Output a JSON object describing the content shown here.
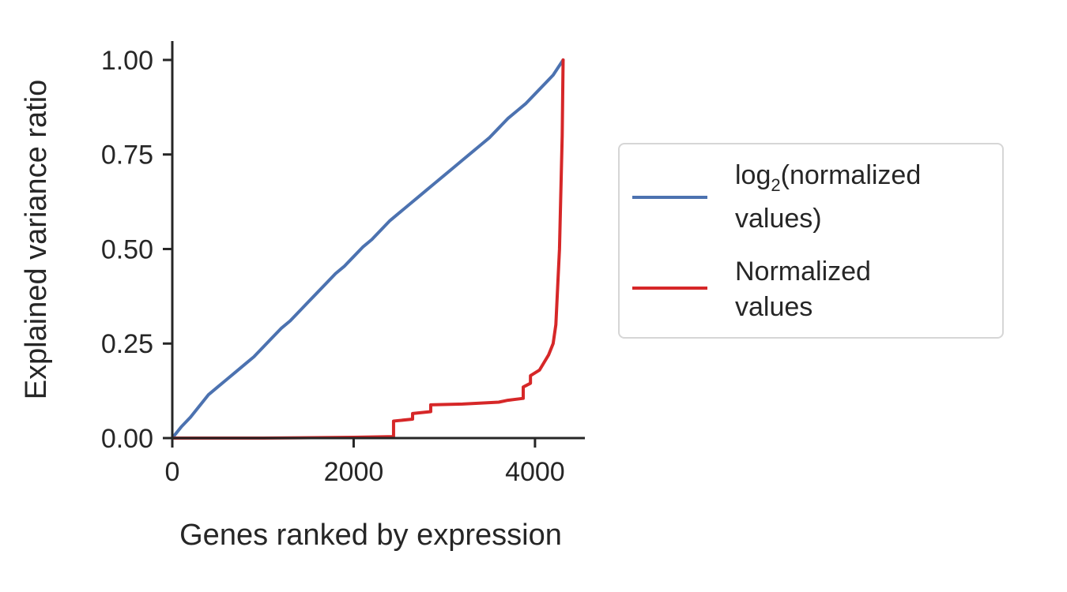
{
  "chart_data": {
    "type": "line",
    "title": "",
    "xlabel": "Genes ranked by expression",
    "ylabel": "Explained variance ratio",
    "xlim": [
      0,
      4550
    ],
    "ylim": [
      0,
      1.05
    ],
    "xticks": [
      0,
      2000,
      4000
    ],
    "xtick_labels": [
      "0",
      "2000",
      "4000"
    ],
    "yticks": [
      0,
      0.25,
      0.5,
      0.75,
      1.0
    ],
    "ytick_labels": [
      "0.00",
      "0.25",
      "0.50",
      "0.75",
      "1.00"
    ],
    "grid": false,
    "legend_position": "right, outside",
    "series": [
      {
        "name_parts": {
          "main": "log",
          "sub": "2",
          "rest": "(normalized",
          "line2": "values)"
        },
        "color": "#4c72b0",
        "x": [
          0,
          100,
          200,
          300,
          400,
          500,
          600,
          700,
          800,
          900,
          1000,
          1100,
          1200,
          1300,
          1400,
          1500,
          1600,
          1700,
          1800,
          1900,
          2000,
          2100,
          2200,
          2300,
          2400,
          2500,
          2600,
          2700,
          2800,
          2900,
          3000,
          3100,
          3200,
          3300,
          3400,
          3500,
          3600,
          3700,
          3800,
          3900,
          4000,
          4100,
          4200,
          4310
        ],
        "y": [
          0.0,
          0.03,
          0.055,
          0.085,
          0.115,
          0.135,
          0.155,
          0.175,
          0.195,
          0.215,
          0.24,
          0.265,
          0.29,
          0.31,
          0.335,
          0.36,
          0.385,
          0.41,
          0.435,
          0.455,
          0.48,
          0.505,
          0.525,
          0.55,
          0.575,
          0.595,
          0.615,
          0.635,
          0.655,
          0.675,
          0.695,
          0.715,
          0.735,
          0.755,
          0.775,
          0.795,
          0.82,
          0.845,
          0.865,
          0.885,
          0.91,
          0.935,
          0.96,
          1.0
        ]
      },
      {
        "name_parts": {
          "main": "Normalized",
          "line2": "values"
        },
        "color": "#d62728",
        "x": [
          0,
          1000,
          2000,
          2440,
          2440,
          2650,
          2650,
          2850,
          2850,
          3200,
          3600,
          3700,
          3870,
          3870,
          3950,
          3950,
          4050,
          4150,
          4200,
          4230,
          4250,
          4270,
          4280,
          4290,
          4300,
          4305,
          4310
        ],
        "y": [
          0.0,
          0.0,
          0.002,
          0.004,
          0.045,
          0.05,
          0.065,
          0.07,
          0.088,
          0.09,
          0.095,
          0.1,
          0.105,
          0.135,
          0.145,
          0.165,
          0.18,
          0.22,
          0.25,
          0.3,
          0.4,
          0.5,
          0.6,
          0.7,
          0.8,
          0.9,
          1.0
        ]
      }
    ]
  }
}
